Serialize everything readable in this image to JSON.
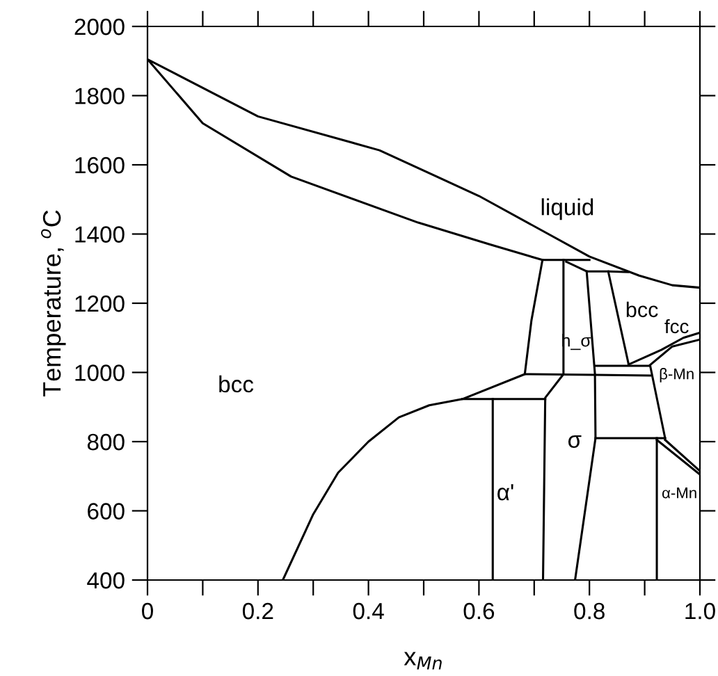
{
  "chart_data": {
    "type": "line",
    "xlabel": "x$_{Mn}$",
    "ylabel": "Temperature, $^{o}$C",
    "xlim": [
      0,
      1.0
    ],
    "ylim": [
      400,
      2000
    ],
    "xticks": [
      0,
      {
        "value": 0.1,
        "label": null
      },
      0.2,
      {
        "value": 0.3,
        "label": null
      },
      0.4,
      {
        "value": 0.5,
        "label": null
      },
      0.6,
      {
        "value": 0.7,
        "label": null
      },
      0.8,
      {
        "value": 0.9,
        "label": null
      },
      {
        "value": 1.0,
        "label": "1.0"
      }
    ],
    "yticks": [
      400,
      600,
      800,
      1000,
      1200,
      1400,
      1600,
      1800,
      2000
    ],
    "grid": false,
    "marker": "none",
    "line_style": "solid",
    "series": [
      {
        "color": "#000000",
        "x": [
          1.0,
          0.95,
          0.89,
          0.8,
          0.6,
          0.42,
          0.2,
          0,
          0.1,
          0.26,
          0.49,
          0.62,
          0.715,
          0.8
        ],
        "values": [
          1245,
          1252,
          1280,
          1335,
          1510,
          1642,
          1740,
          1905,
          1720,
          1566,
          1433,
          1370,
          1325,
          1325
        ]
      },
      {
        "color": "#000000",
        "x": [
          0.758,
          0.795,
          0.834,
          0.87
        ],
        "values": [
          1320,
          1292,
          1292,
          1290
        ]
      },
      {
        "color": "#000000",
        "x": [
          0.245,
          0.3,
          0.345,
          0.4,
          0.455,
          0.51,
          0.57,
          0.683,
          0.695,
          0.715
        ],
        "values": [
          400,
          590,
          710,
          800,
          870,
          905,
          923,
          995,
          1150,
          1325
        ]
      },
      {
        "color": "#000000",
        "x": [
          0.716,
          0.72,
          0.753,
          0.753
        ],
        "values": [
          400,
          927,
          995,
          1325
        ]
      },
      {
        "color": "#000000",
        "x": [
          0.795,
          0.81,
          0.81,
          0.811,
          0.774
        ],
        "values": [
          1292,
          995,
          991,
          810,
          400
        ]
      },
      {
        "color": "#000000",
        "x": [
          0.834,
          0.871
        ],
        "values": [
          1292,
          1023
        ]
      },
      {
        "color": "#000000",
        "x": [
          0.683,
          0.81,
          0.91
        ],
        "values": [
          995,
          993,
          991
        ]
      },
      {
        "color": "#000000",
        "x": [
          0.81,
          0.91
        ],
        "values": [
          1019,
          1019
        ]
      },
      {
        "color": "#000000",
        "x": [
          0.871,
          0.93,
          0.97,
          1.0
        ],
        "values": [
          1023,
          1065,
          1100,
          1115
        ]
      },
      {
        "color": "#000000",
        "x": [
          0.91,
          0.95,
          1.0
        ],
        "values": [
          1022,
          1075,
          1095
        ]
      },
      {
        "color": "#000000",
        "x": [
          0.91,
          0.937
        ],
        "values": [
          1019,
          810
        ]
      },
      {
        "color": "#000000",
        "x": [
          0.811,
          0.937
        ],
        "values": [
          810,
          810
        ]
      },
      {
        "color": "#000000",
        "x": [
          0.922,
          0.922
        ],
        "values": [
          810,
          400
        ]
      },
      {
        "color": "#000000",
        "x": [
          0.922,
          1.0
        ],
        "values": [
          805,
          705
        ]
      },
      {
        "color": "#000000",
        "x": [
          0.937,
          1.0
        ],
        "values": [
          805,
          715
        ]
      },
      {
        "color": "#000000",
        "x": [
          0.57,
          0.72
        ],
        "values": [
          923,
          923
        ]
      },
      {
        "color": "#000000",
        "x": [
          0.625,
          0.625
        ],
        "values": [
          923,
          400
        ]
      }
    ],
    "annotations": [
      "liquid",
      "bcc",
      "bcc",
      "fcc",
      "h_σ",
      "β-Mn",
      "σ",
      "α'",
      "α-Mn"
    ]
  }
}
